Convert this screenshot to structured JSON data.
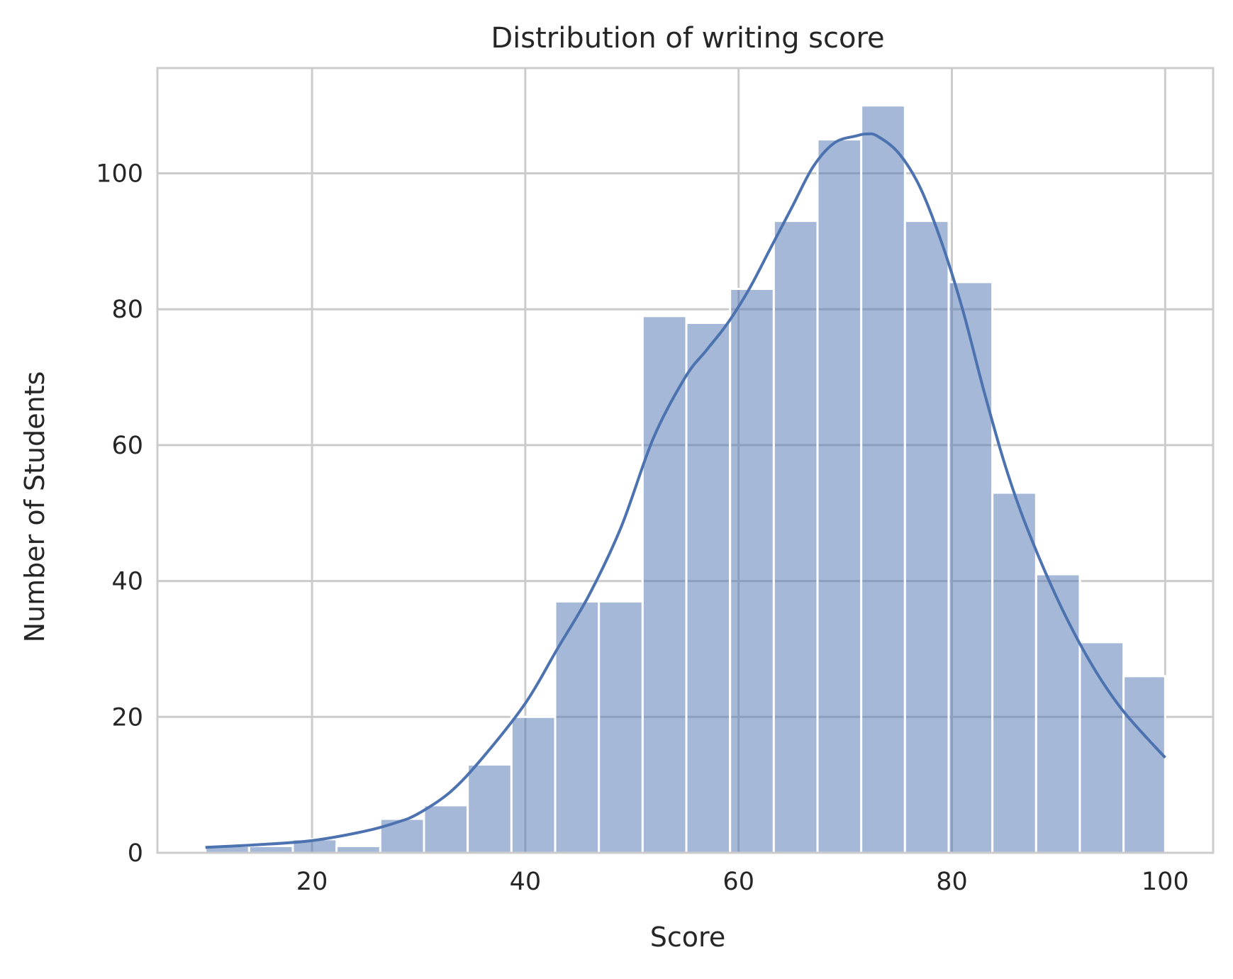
{
  "chart_data": {
    "type": "bar",
    "title": "Distribution of writing score",
    "xlabel": "Score",
    "ylabel": "Number of Students",
    "xlim": [
      5.5,
      104.5
    ],
    "ylim": [
      0,
      115.5
    ],
    "xticks": [
      20,
      40,
      60,
      80,
      100
    ],
    "yticks": [
      0,
      20,
      40,
      60,
      80,
      100
    ],
    "grid": true,
    "legend": "none",
    "bar_color": "#4c72b0",
    "bar_opacity": 0.5,
    "line_color": "#4c72b0",
    "grid_color": "#cccccc",
    "bins": [
      {
        "x0": 10.0,
        "x1": 14.1,
        "value": 1
      },
      {
        "x0": 14.1,
        "x1": 18.2,
        "value": 1
      },
      {
        "x0": 18.2,
        "x1": 22.3,
        "value": 2
      },
      {
        "x0": 22.3,
        "x1": 26.4,
        "value": 1
      },
      {
        "x0": 26.4,
        "x1": 30.5,
        "value": 5
      },
      {
        "x0": 30.5,
        "x1": 34.6,
        "value": 7
      },
      {
        "x0": 34.6,
        "x1": 38.7,
        "value": 13
      },
      {
        "x0": 38.7,
        "x1": 42.8,
        "value": 20
      },
      {
        "x0": 42.8,
        "x1": 46.9,
        "value": 37
      },
      {
        "x0": 46.9,
        "x1": 51.0,
        "value": 37
      },
      {
        "x0": 51.0,
        "x1": 55.1,
        "value": 79
      },
      {
        "x0": 55.1,
        "x1": 59.2,
        "value": 78
      },
      {
        "x0": 59.2,
        "x1": 63.3,
        "value": 83
      },
      {
        "x0": 63.3,
        "x1": 67.4,
        "value": 93
      },
      {
        "x0": 67.4,
        "x1": 71.5,
        "value": 105
      },
      {
        "x0": 71.5,
        "x1": 75.6,
        "value": 110
      },
      {
        "x0": 75.6,
        "x1": 79.7,
        "value": 93
      },
      {
        "x0": 79.7,
        "x1": 83.8,
        "value": 84
      },
      {
        "x0": 83.8,
        "x1": 87.9,
        "value": 53
      },
      {
        "x0": 87.9,
        "x1": 92.0,
        "value": 41
      },
      {
        "x0": 92.0,
        "x1": 96.1,
        "value": 31
      },
      {
        "x0": 96.1,
        "x1": 100.0,
        "value": 26
      }
    ],
    "kde": {
      "x": [
        10,
        15,
        20,
        25,
        28,
        30,
        33,
        36,
        40,
        43,
        46,
        49,
        52,
        55,
        57,
        59,
        61,
        63,
        65,
        67,
        69,
        71,
        72,
        73,
        75,
        77,
        79,
        81,
        83,
        85,
        87,
        90,
        93,
        96,
        100
      ],
      "y": [
        0.8,
        1.2,
        1.8,
        3.2,
        4.5,
        5.8,
        9,
        14,
        22,
        30,
        38,
        48,
        61,
        70,
        74,
        78,
        83,
        89,
        95,
        101,
        104.5,
        105.5,
        105.8,
        105.5,
        103,
        98,
        90,
        80,
        68,
        57,
        48,
        37,
        28,
        21,
        14
      ]
    }
  }
}
